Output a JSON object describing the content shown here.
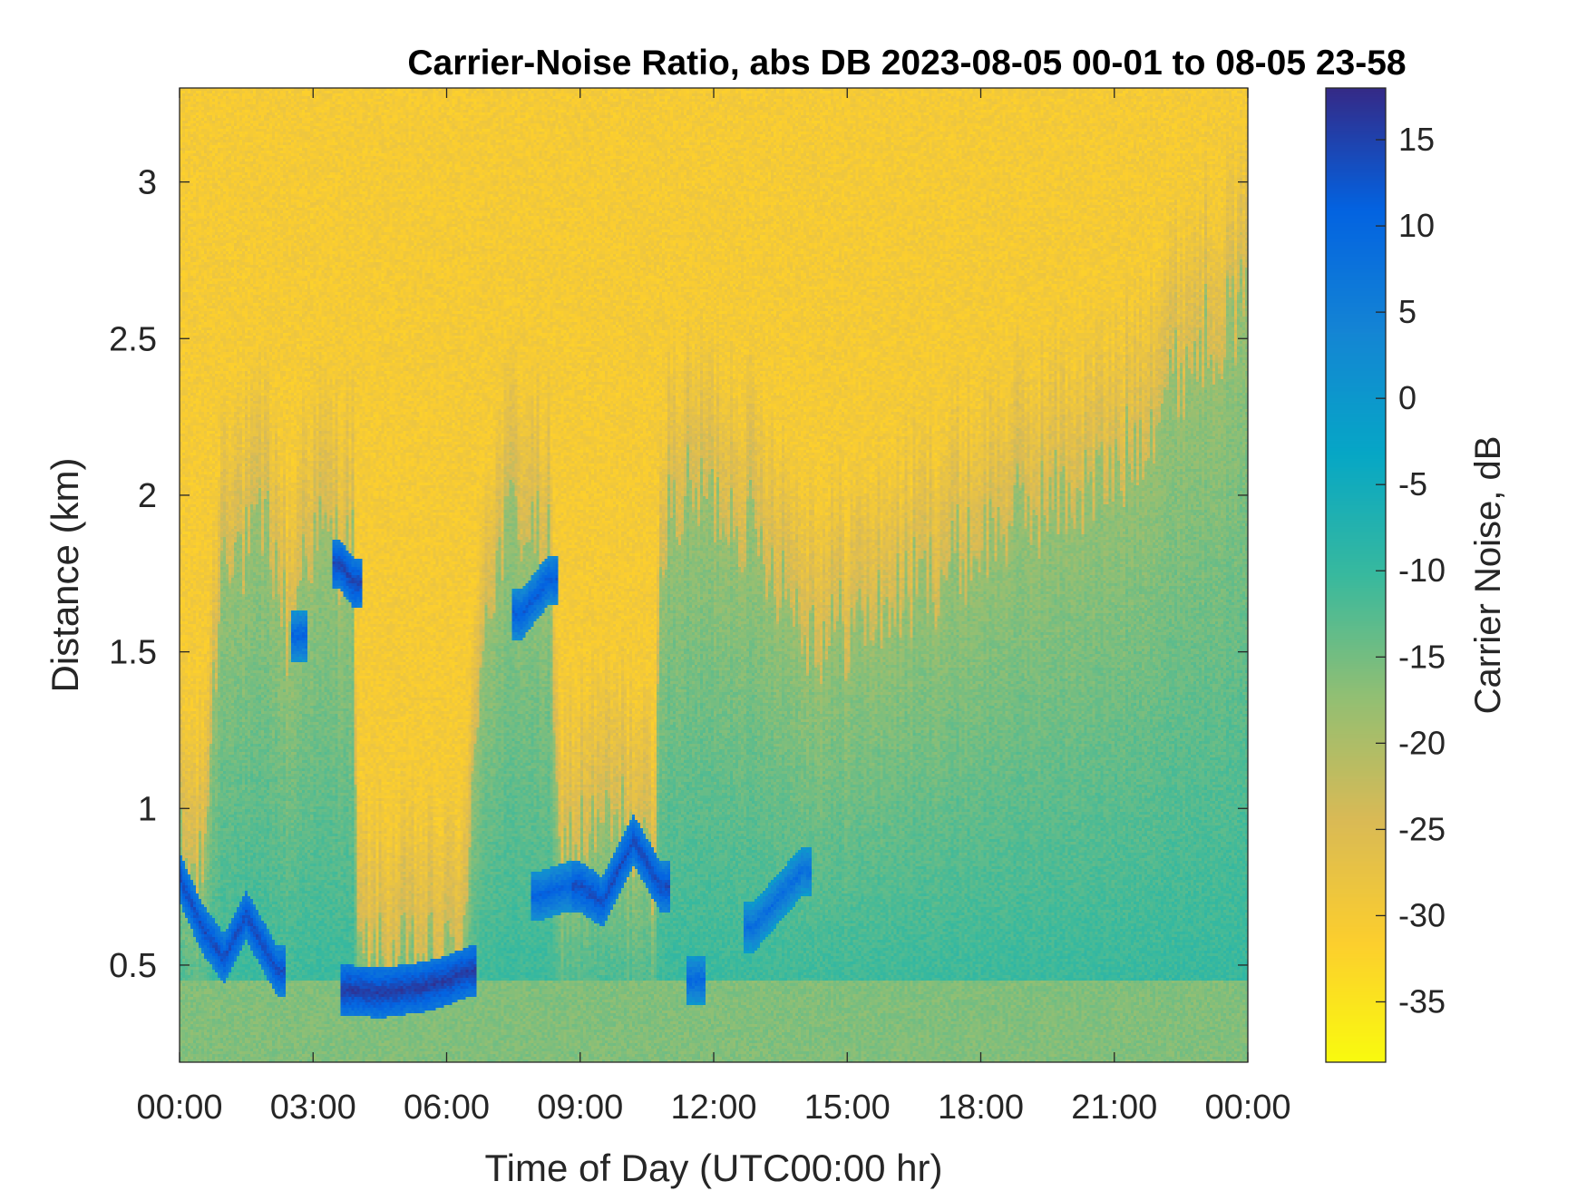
{
  "chart_data": {
    "type": "heatmap",
    "title": "Carrier-Noise Ratio, abs DB 2023-08-05 00-01 to 08-05 23-58",
    "xlabel": "Time of Day (UTC00:00 hr)",
    "ylabel": "Distance (km)",
    "colorbar_label": "Carrier Noise, dB",
    "x_tick_labels": [
      "00:00",
      "03:00",
      "06:00",
      "09:00",
      "12:00",
      "15:00",
      "18:00",
      "21:00",
      "00:00"
    ],
    "x_tick_hours": [
      0,
      3,
      6,
      9,
      12,
      15,
      18,
      21,
      24
    ],
    "xlim_hours": [
      0,
      24
    ],
    "y_ticks": [
      0.5,
      1,
      1.5,
      2,
      2.5,
      3
    ],
    "y_tick_labels": [
      "0.5",
      "1",
      "1.5",
      "2",
      "2.5",
      "3"
    ],
    "ylim_km": [
      0.19,
      3.3
    ],
    "colorbar_ticks": [
      15,
      10,
      5,
      0,
      -5,
      -10,
      -15,
      -20,
      -25,
      -30,
      -35
    ],
    "colorbar_tick_labels": [
      "15",
      "10",
      "5",
      "0",
      "-5",
      "-10",
      "-15",
      "-20",
      "-25",
      "-30",
      "-35"
    ],
    "clim_db": [
      -38.5,
      18
    ],
    "colormap": "parula",
    "colormap_stops": [
      "#352a87",
      "#0363e1",
      "#1485d4",
      "#06a7c6",
      "#38b99e",
      "#92bf73",
      "#d9ba56",
      "#fcce2e",
      "#f9fb0e"
    ],
    "noise_floor_db": -30,
    "colorbar_side": "right",
    "grid": false,
    "series": [
      {
        "name": "boundary layer top",
        "time_hours": [
          0,
          0.5,
          1.0,
          1.5,
          2.0,
          2.5,
          2.8,
          3.3,
          3.9,
          4.0,
          6.0,
          6.5,
          6.6,
          6.8,
          7.5,
          8.3,
          8.5,
          9.0,
          10.0,
          10.7,
          10.8,
          11.5,
          12.5,
          13.5,
          14.0,
          14.5,
          15.5,
          17.0,
          19.0,
          21.0,
          22.0,
          23.0,
          24.0
        ],
        "top_km": [
          0.85,
          0.75,
          1.9,
          1.8,
          1.9,
          1.5,
          1.85,
          1.85,
          1.8,
          0.5,
          0.5,
          0.65,
          1.1,
          1.6,
          1.95,
          1.8,
          0.85,
          0.9,
          0.95,
          0.75,
          1.9,
          2.0,
          1.95,
          1.75,
          1.6,
          1.55,
          1.6,
          1.75,
          1.95,
          2.05,
          2.3,
          2.5,
          2.6
        ]
      },
      {
        "name": "strong return layer",
        "segments": [
          {
            "time_hours": [
              0.0,
              0.5,
              1.0,
              1.5,
              2.2
            ],
            "distance_km": [
              0.78,
              0.62,
              0.52,
              0.66,
              0.48
            ],
            "peak_db": 14
          },
          {
            "time_hours": [
              3.6,
              3.9
            ],
            "distance_km": [
              1.78,
              1.72
            ],
            "peak_db": 15
          },
          {
            "time_hours": [
              2.7
            ],
            "distance_km": [
              1.55
            ],
            "peak_db": 11
          },
          {
            "time_hours": [
              3.8,
              4.5,
              5.5,
              6.0,
              6.5
            ],
            "distance_km": [
              0.42,
              0.41,
              0.43,
              0.45,
              0.48
            ],
            "peak_db": 16
          },
          {
            "time_hours": [
              7.7,
              8.3
            ],
            "distance_km": [
              1.62,
              1.73
            ],
            "peak_db": 12
          },
          {
            "time_hours": [
              8.1,
              8.7
            ],
            "distance_km": [
              0.72,
              0.75
            ],
            "peak_db": 11
          },
          {
            "time_hours": [
              9.0,
              9.5,
              10.2,
              10.8
            ],
            "distance_km": [
              0.75,
              0.7,
              0.9,
              0.75
            ],
            "peak_db": 14
          },
          {
            "time_hours": [
              11.6
            ],
            "distance_km": [
              0.45
            ],
            "peak_db": 10
          },
          {
            "time_hours": [
              12.9,
              13.5,
              14.0
            ],
            "distance_km": [
              0.62,
              0.72,
              0.8
            ],
            "peak_db": 9
          }
        ]
      }
    ]
  }
}
